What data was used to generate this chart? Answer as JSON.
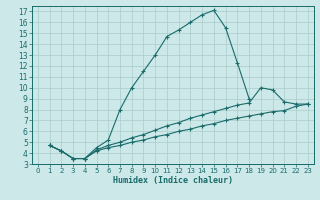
{
  "xlabel": "Humidex (Indice chaleur)",
  "bg_color": "#cce8e8",
  "grid_color": "#aacccc",
  "line_color": "#1a6b6b",
  "xlim": [
    -0.5,
    23.5
  ],
  "ylim": [
    3,
    17.5
  ],
  "xticks": [
    0,
    1,
    2,
    3,
    4,
    5,
    6,
    7,
    8,
    9,
    10,
    11,
    12,
    13,
    14,
    15,
    16,
    17,
    18,
    19,
    20,
    21,
    22,
    23
  ],
  "yticks": [
    3,
    4,
    5,
    6,
    7,
    8,
    9,
    10,
    11,
    12,
    13,
    14,
    15,
    16,
    17
  ],
  "line1_x": [
    1,
    2,
    3,
    4,
    5,
    6,
    7,
    8,
    9,
    10,
    11,
    12,
    13,
    14,
    15,
    16,
    17,
    18
  ],
  "line1_y": [
    4.7,
    4.2,
    3.5,
    3.5,
    4.5,
    5.2,
    8.0,
    10.0,
    11.5,
    13.0,
    14.7,
    15.3,
    16.0,
    16.7,
    17.1,
    15.5,
    12.3,
    9.0
  ],
  "line2_x": [
    1,
    2,
    3,
    4,
    5,
    6,
    7,
    8,
    9,
    10,
    11,
    12,
    13,
    14,
    15,
    16,
    17,
    18,
    19,
    20,
    21,
    22,
    23
  ],
  "line2_y": [
    4.7,
    4.2,
    3.5,
    3.5,
    4.3,
    4.7,
    5.0,
    5.4,
    5.7,
    6.1,
    6.5,
    6.8,
    7.2,
    7.5,
    7.8,
    8.1,
    8.4,
    8.6,
    10.0,
    9.8,
    8.7,
    8.5,
    8.5
  ],
  "line3_x": [
    1,
    2,
    3,
    4,
    5,
    6,
    7,
    8,
    9,
    10,
    11,
    12,
    13,
    14,
    15,
    16,
    17,
    18,
    19,
    20,
    21,
    22,
    23
  ],
  "line3_y": [
    4.7,
    4.2,
    3.5,
    3.5,
    4.2,
    4.5,
    4.7,
    5.0,
    5.2,
    5.5,
    5.7,
    6.0,
    6.2,
    6.5,
    6.7,
    7.0,
    7.2,
    7.4,
    7.6,
    7.8,
    7.9,
    8.3,
    8.5
  ]
}
